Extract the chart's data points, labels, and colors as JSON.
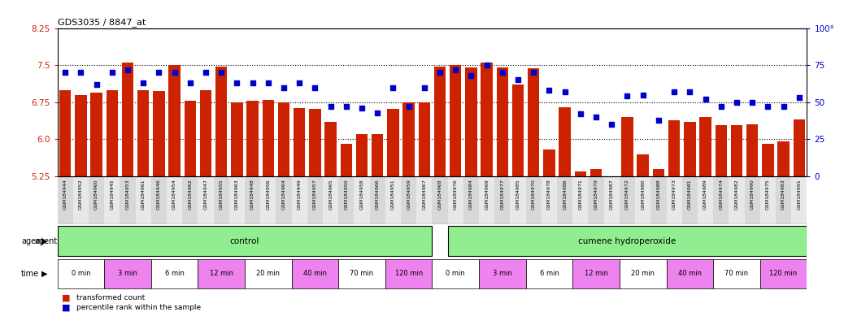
{
  "title": "GDS3035 / 8847_at",
  "bar_color": "#cc2200",
  "dot_color": "#0000cc",
  "bar_bottom": 5.25,
  "ylim_left": [
    5.25,
    8.25
  ],
  "ylim_right": [
    0,
    100
  ],
  "yticks_left": [
    5.25,
    6.0,
    6.75,
    7.5,
    8.25
  ],
  "yticks_right": [
    0,
    25,
    50,
    75,
    100
  ],
  "hlines": [
    6.0,
    6.75,
    7.5
  ],
  "samples": [
    "GSM184944",
    "GSM184952",
    "GSM184960",
    "GSM184945",
    "GSM184953",
    "GSM184961",
    "GSM184946",
    "GSM184954",
    "GSM184962",
    "GSM184947",
    "GSM184955",
    "GSM184963",
    "GSM184948",
    "GSM184956",
    "GSM184964",
    "GSM184949",
    "GSM184957",
    "GSM184965",
    "GSM184950",
    "GSM184958",
    "GSM184966",
    "GSM184951",
    "GSM184959",
    "GSM184967",
    "GSM184968",
    "GSM184976",
    "GSM184984",
    "GSM184969",
    "GSM184977",
    "GSM184985",
    "GSM184970",
    "GSM184978",
    "GSM184986",
    "GSM184971",
    "GSM184979",
    "GSM184987",
    "GSM184972",
    "GSM184980",
    "GSM184988",
    "GSM184973",
    "GSM184981",
    "GSM184989",
    "GSM184974",
    "GSM184982",
    "GSM184990",
    "GSM184975",
    "GSM184983",
    "GSM184991"
  ],
  "bar_values": [
    7.0,
    6.9,
    6.95,
    7.0,
    7.55,
    7.0,
    6.97,
    7.5,
    6.78,
    7.0,
    7.47,
    6.75,
    6.78,
    6.8,
    6.75,
    6.63,
    6.62,
    6.35,
    5.9,
    6.1,
    6.1,
    6.62,
    6.75,
    6.75,
    7.47,
    7.5,
    7.45,
    7.56,
    7.45,
    7.1,
    7.43,
    5.8,
    6.65,
    5.35,
    5.4,
    5.25,
    6.45,
    5.7,
    5.4,
    6.38,
    6.35,
    6.45,
    6.28,
    6.28,
    6.3,
    5.9,
    5.95,
    6.4
  ],
  "dot_values": [
    70,
    70,
    62,
    70,
    72,
    63,
    70,
    70,
    63,
    70,
    70,
    63,
    63,
    63,
    60,
    63,
    60,
    47,
    47,
    46,
    43,
    60,
    47,
    60,
    70,
    72,
    68,
    75,
    70,
    65,
    70,
    58,
    57,
    42,
    40,
    35,
    54,
    55,
    38,
    57,
    57,
    52,
    47,
    50,
    50,
    47,
    47,
    53
  ],
  "agent_green": "#90ee90",
  "time_groups_control": [
    {
      "label": "0 min",
      "color": "#ffffff",
      "start": 0,
      "end": 3
    },
    {
      "label": "3 min",
      "color": "#ee82ee",
      "start": 3,
      "end": 6
    },
    {
      "label": "6 min",
      "color": "#ffffff",
      "start": 6,
      "end": 9
    },
    {
      "label": "12 min",
      "color": "#ee82ee",
      "start": 9,
      "end": 12
    },
    {
      "label": "20 min",
      "color": "#ffffff",
      "start": 12,
      "end": 15
    },
    {
      "label": "40 min",
      "color": "#ee82ee",
      "start": 15,
      "end": 18
    },
    {
      "label": "70 min",
      "color": "#ffffff",
      "start": 18,
      "end": 21
    },
    {
      "label": "120 min",
      "color": "#ee82ee",
      "start": 21,
      "end": 24
    }
  ],
  "time_groups_cumene": [
    {
      "label": "0 min",
      "color": "#ffffff",
      "start": 24,
      "end": 27
    },
    {
      "label": "3 min",
      "color": "#ee82ee",
      "start": 27,
      "end": 30
    },
    {
      "label": "6 min",
      "color": "#ffffff",
      "start": 30,
      "end": 33
    },
    {
      "label": "12 min",
      "color": "#ee82ee",
      "start": 33,
      "end": 36
    },
    {
      "label": "20 min",
      "color": "#ffffff",
      "start": 36,
      "end": 39
    },
    {
      "label": "40 min",
      "color": "#ee82ee",
      "start": 39,
      "end": 42
    },
    {
      "label": "70 min",
      "color": "#ffffff",
      "start": 42,
      "end": 45
    },
    {
      "label": "120 min",
      "color": "#ee82ee",
      "start": 45,
      "end": 48
    }
  ],
  "legend_bar": "transformed count",
  "legend_dot": "percentile rank within the sample",
  "xticklabel_bg_odd": "#d8d8d8",
  "xticklabel_bg_even": "#e8e8e8"
}
